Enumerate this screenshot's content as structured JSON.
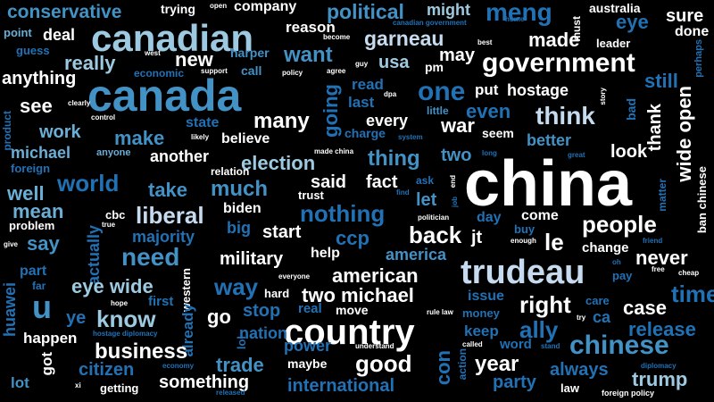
{
  "colors": {
    "background": "#000000",
    "white": "#ffffff",
    "light_blue": "#c6dbef",
    "sky_blue": "#9ecae1",
    "mid_blue": "#6baed6",
    "blue": "#4292c6",
    "deep_blue": "#2171b5",
    "navy": "#08519c",
    "dark_navy": "#08306b"
  },
  "words": [
    "china",
    "canada",
    "canadian",
    "country",
    "trudeau",
    "government",
    "conservative",
    "company",
    "political",
    "might",
    "meng",
    "australia",
    "eye",
    "sure",
    "done",
    "trying",
    "open",
    "point",
    "deal",
    "reason",
    "canadian government",
    "must",
    "garneau",
    "made",
    "leader",
    "guess",
    "become",
    "best",
    "home",
    "harper",
    "west",
    "want",
    "may",
    "perhaps",
    "really",
    "new",
    "usa",
    "pm",
    "agree",
    "guy",
    "economic",
    "support",
    "call",
    "policy",
    "anything",
    "read",
    "dpa",
    "put",
    "hostage",
    "story",
    "still",
    "one",
    "ban chinese",
    "see",
    "clearly",
    "last",
    "little",
    "even",
    "think",
    "bad",
    "thank",
    "product",
    "control",
    "state",
    "many",
    "every",
    "war",
    "work",
    "make",
    "believe",
    "going",
    "charge",
    "system",
    "seem",
    "better",
    "wide open",
    "michael",
    "anyone",
    "likely",
    "another",
    "election",
    "thing",
    "two",
    "look",
    "foreign",
    "relation",
    "made china",
    "long",
    "great",
    "world",
    "fact",
    "said",
    "end",
    "ask",
    "matter",
    "well",
    "take",
    "much",
    "trust",
    "find",
    "let",
    "mean",
    "biden",
    "job",
    "liberal",
    "nothing",
    "politician",
    "day",
    "come",
    "cbc",
    "problem",
    "true",
    "big",
    "start",
    "buy",
    "people",
    "say",
    "majority",
    "back",
    "ccp",
    "jt",
    "enough",
    "le",
    "change",
    "give",
    "actually",
    "friend",
    "need",
    "military",
    "help",
    "america",
    "never",
    "part",
    "american",
    "oh",
    "cheap",
    "eye wide",
    "way",
    "free",
    "far",
    "pay",
    "huawei",
    "time",
    "hard",
    "two michael",
    "issue",
    "western",
    "hope",
    "first",
    "right",
    "care",
    "u",
    "everyone",
    "real",
    "already",
    "case",
    "ye",
    "know",
    "go",
    "stop",
    "rule law",
    "money",
    "try",
    "ca",
    "hostage diplomacy",
    "nation",
    "move",
    "keep",
    "release",
    "happen",
    "ally",
    "understand",
    "power",
    "called",
    "word",
    "stand",
    "chinese",
    "lol",
    "business",
    "con",
    "got",
    "economy",
    "maybe",
    "action",
    "year",
    "diplomacy",
    "citizen",
    "trade",
    "good",
    "always",
    "lot",
    "xi",
    "getting",
    "something",
    "international",
    "party",
    "law",
    "trump",
    "released",
    "foreign policy"
  ]
}
